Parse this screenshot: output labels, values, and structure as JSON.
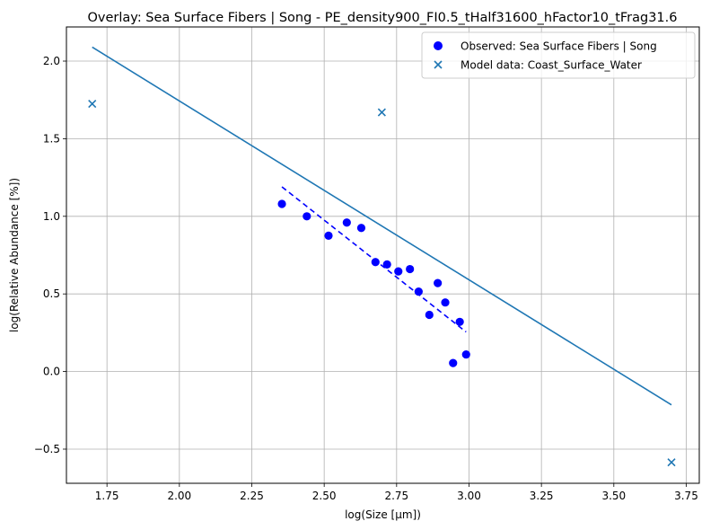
{
  "chart_data": {
    "type": "scatter",
    "title": "Overlay: Sea Surface Fibers | Song - PE_density900_FI0.5_tHalf31600_hFactor10_tFrag31.6",
    "xlabel": "log(Size [μm])",
    "ylabel": "log(Relative Abundance [%])",
    "xlim": [
      1.61,
      3.795
    ],
    "ylim": [
      -0.72,
      2.22
    ],
    "x_ticks": [
      1.75,
      2.0,
      2.25,
      2.5,
      2.75,
      3.0,
      3.25,
      3.5,
      3.75
    ],
    "x_tick_labels": [
      "1.75",
      "2.00",
      "2.25",
      "2.50",
      "2.75",
      "3.00",
      "3.25",
      "3.50",
      "3.75"
    ],
    "y_ticks": [
      -0.5,
      0.0,
      0.5,
      1.0,
      1.5,
      2.0
    ],
    "y_tick_labels": [
      "−0.5",
      "0.0",
      "0.5",
      "1.0",
      "1.5",
      "2.0"
    ],
    "grid": true,
    "legend_position": "top-right",
    "series": [
      {
        "name": "Observed: Sea Surface Fibers | Song",
        "kind": "scatter-circle",
        "color": "#0000ff",
        "x": [
          2.354,
          2.44,
          2.515,
          2.578,
          2.628,
          2.677,
          2.717,
          2.756,
          2.796,
          2.826,
          2.863,
          2.892,
          2.918,
          2.945,
          2.968,
          2.99
        ],
        "y": [
          1.08,
          1.0,
          0.875,
          0.96,
          0.925,
          0.705,
          0.69,
          0.645,
          0.66,
          0.515,
          0.365,
          0.57,
          0.445,
          0.055,
          0.32,
          0.11
        ]
      },
      {
        "name": "Model data: Coast_Surface_Water",
        "kind": "scatter-x",
        "color": "#1f77b4",
        "x": [
          1.699,
          2.699,
          3.699
        ],
        "y": [
          1.725,
          1.67,
          -0.585
        ]
      },
      {
        "kind": "line-dashed",
        "color": "#0000ff",
        "x": [
          2.354,
          2.99
        ],
        "y": [
          1.19,
          0.255
        ]
      },
      {
        "kind": "line-solid",
        "color": "#1f77b4",
        "x": [
          1.699,
          3.699
        ],
        "y": [
          2.09,
          -0.215
        ]
      }
    ]
  }
}
